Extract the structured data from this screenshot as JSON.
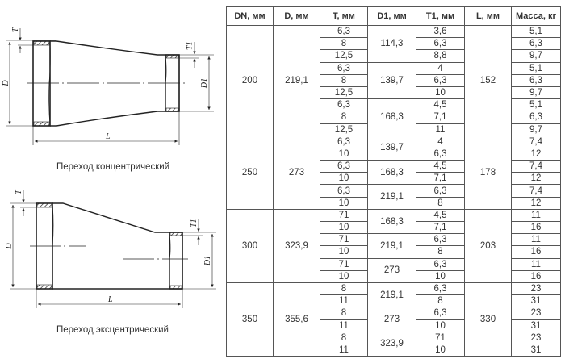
{
  "drawings": {
    "concentric": {
      "caption": "Переход концентрический",
      "labels": {
        "d": "D",
        "t": "T",
        "d1": "D1",
        "t1": "T1",
        "l": "L"
      }
    },
    "eccentric": {
      "caption": "Переход эксцентрический",
      "labels": {
        "d": "D",
        "t": "T",
        "d1": "D1",
        "t1": "T1",
        "l": "L"
      }
    }
  },
  "table": {
    "headers": [
      "DN, мм",
      "D, мм",
      "T, мм",
      "D1, мм",
      "T1, мм",
      "L, мм",
      "Масса, кг"
    ],
    "groups": [
      {
        "dn": "200",
        "d": "219,1",
        "l": "152",
        "sub": [
          {
            "d1": "114,3",
            "rows": [
              [
                "6,3",
                "3,6",
                "5,1"
              ],
              [
                "8",
                "6,3",
                "6,3"
              ],
              [
                "12,5",
                "8,8",
                "9,7"
              ]
            ]
          },
          {
            "d1": "139,7",
            "rows": [
              [
                "6,3",
                "4",
                "5,1"
              ],
              [
                "8",
                "6,3",
                "6,3"
              ],
              [
                "12,5",
                "10",
                "9,7"
              ]
            ]
          },
          {
            "d1": "168,3",
            "rows": [
              [
                "6,3",
                "4,5",
                "5,1"
              ],
              [
                "8",
                "7,1",
                "6,3"
              ],
              [
                "12,5",
                "11",
                "9,7"
              ]
            ]
          }
        ]
      },
      {
        "dn": "250",
        "d": "273",
        "l": "178",
        "sub": [
          {
            "d1": "139,7",
            "rows": [
              [
                "6,3",
                "4",
                "7,4"
              ],
              [
                "10",
                "6,3",
                "12"
              ]
            ]
          },
          {
            "d1": "168,3",
            "rows": [
              [
                "6,3",
                "4,5",
                "7,4"
              ],
              [
                "10",
                "7,1",
                "12"
              ]
            ]
          },
          {
            "d1": "219,1",
            "rows": [
              [
                "6,3",
                "6,3",
                "7,4"
              ],
              [
                "10",
                "8",
                "12"
              ]
            ]
          }
        ]
      },
      {
        "dn": "300",
        "d": "323,9",
        "l": "203",
        "sub": [
          {
            "d1": "168,3",
            "rows": [
              [
                "71",
                "4,5",
                "11"
              ],
              [
                "10",
                "7,1",
                "16"
              ]
            ]
          },
          {
            "d1": "219,1",
            "rows": [
              [
                "71",
                "6,3",
                "11"
              ],
              [
                "10",
                "8",
                "16"
              ]
            ]
          },
          {
            "d1": "273",
            "rows": [
              [
                "71",
                "6,3",
                "11"
              ],
              [
                "10",
                "10",
                "16"
              ]
            ]
          }
        ]
      },
      {
        "dn": "350",
        "d": "355,6",
        "l": "330",
        "sub": [
          {
            "d1": "219,1",
            "rows": [
              [
                "8",
                "6,3",
                "23"
              ],
              [
                "11",
                "8",
                "31"
              ]
            ]
          },
          {
            "d1": "273",
            "rows": [
              [
                "8",
                "6,3",
                "23"
              ],
              [
                "11",
                "10",
                "31"
              ]
            ]
          },
          {
            "d1": "323,9",
            "rows": [
              [
                "8",
                "71",
                "23"
              ],
              [
                "11",
                "10",
                "31"
              ]
            ]
          }
        ]
      }
    ]
  }
}
